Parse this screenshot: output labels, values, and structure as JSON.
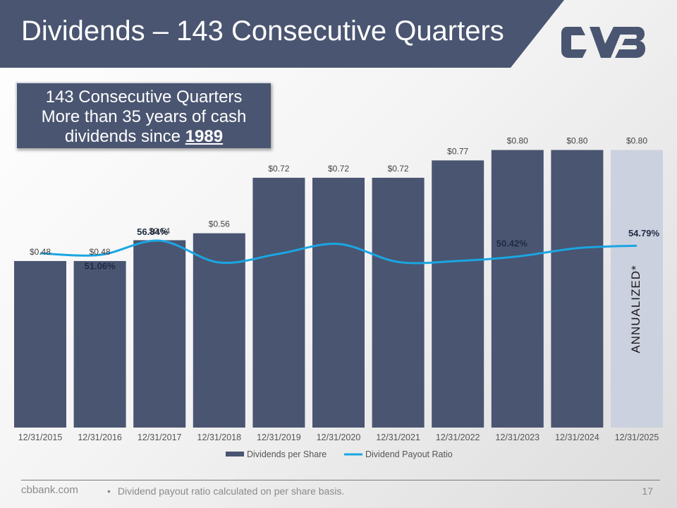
{
  "header": {
    "title": "Dividends – 143 Consecutive Quarters",
    "bar_color": "#4a5571",
    "logo_color": "#ffffff"
  },
  "callout": {
    "line1": "143 Consecutive Quarters",
    "line2": "More than 35 years of cash",
    "line3_prefix": "dividends since ",
    "line3_year": "1989"
  },
  "chart_data": {
    "type": "bar",
    "categories": [
      "12/31/2015",
      "12/31/2016",
      "12/31/2017",
      "12/31/2018",
      "12/31/2019",
      "12/31/2020",
      "12/31/2021",
      "12/31/2022",
      "12/31/2023",
      "12/31/2024",
      "12/31/2025"
    ],
    "series": [
      {
        "name": "Dividends per Share",
        "type": "bar",
        "color": "#4a5571",
        "highlight_color": "#ccd1df",
        "highlight_index": 10,
        "values": [
          0.48,
          0.48,
          0.54,
          0.56,
          0.72,
          0.72,
          0.72,
          0.77,
          0.8,
          0.8,
          0.8
        ],
        "labels": [
          "$0.48",
          "$0.48",
          "$0.54",
          "$0.56",
          "$0.72",
          "$0.72",
          "$0.72",
          "$0.77",
          "$0.80",
          "$0.80",
          "$0.80"
        ]
      },
      {
        "name": "Dividend Payout Ratio",
        "type": "line",
        "color": "#1aa6e2",
        "values": [
          51.7,
          51.06,
          56.84,
          48.0,
          51.5,
          55.5,
          48.2,
          48.6,
          50.42,
          53.8,
          54.79
        ],
        "annotations": [
          {
            "index": 1,
            "text": "51.06%"
          },
          {
            "index": 2,
            "text": "56.84%"
          },
          {
            "index": 8,
            "text": "50.42%"
          },
          {
            "index": 10,
            "text": "54.79%"
          }
        ]
      }
    ],
    "ylim": [
      0,
      0.85
    ],
    "ylim_ratio": [
      0,
      80
    ],
    "legend_position": "bottom",
    "grid": false,
    "vertical_note": "ANNUALIZED*"
  },
  "footer": {
    "site": "cbbank.com",
    "bullet": "•",
    "note": "Dividend payout ratio calculated on per share basis.",
    "page": "17"
  }
}
